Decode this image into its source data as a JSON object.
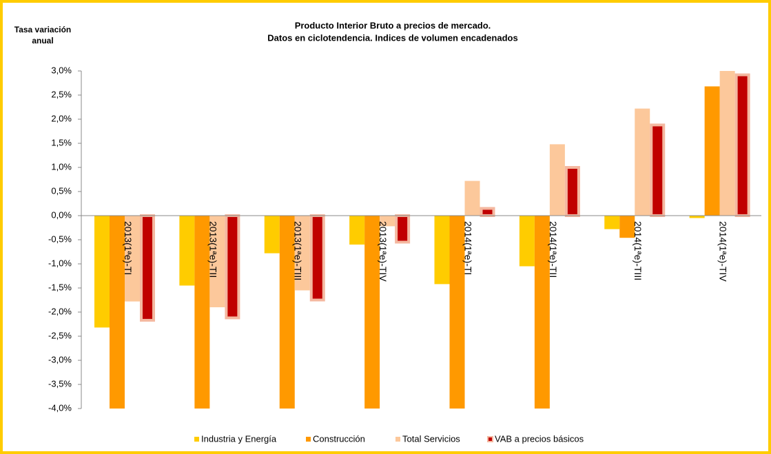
{
  "chart_data": {
    "type": "bar",
    "title": [
      "Producto Interior Bruto a precios de mercado.",
      "Datos en ciclotendencia. Indices de volumen encadenados"
    ],
    "y_label": [
      "Tasa variación",
      "anual"
    ],
    "categories": [
      "2013(1ªe)-TI",
      "2013(1ªe)-TII",
      "2013(1ªe)-TIII",
      "2013(1ªe)-TIV",
      "2014(1ªe)-TI",
      "2014(1ªe)-TII",
      "2014(1ªe)-TIII",
      "2014(1ªe)-TIV"
    ],
    "series": [
      {
        "name": "Industria y Energía",
        "color": "#ffcc00",
        "values": [
          -2.32,
          -1.45,
          -0.78,
          -0.6,
          -1.42,
          -1.05,
          -0.28,
          -0.05
        ]
      },
      {
        "name": "Construcción",
        "color": "#ff9900",
        "values": [
          -4.0,
          -4.0,
          -4.0,
          -4.0,
          -4.0,
          -4.0,
          -0.46,
          2.68
        ]
      },
      {
        "name": "Total Servicios",
        "color": "#fcc89b",
        "values": [
          -1.78,
          -1.9,
          -1.55,
          -0.22,
          0.72,
          1.48,
          2.22,
          3.0
        ]
      },
      {
        "name": "VAB a precios básicos",
        "color": "#c00000",
        "border": "#f4b8a0",
        "values": [
          -2.17,
          -2.12,
          -1.75,
          -0.55,
          0.15,
          1.0,
          1.88,
          2.92
        ]
      }
    ],
    "ylim": [
      -4.0,
      3.0
    ],
    "yticks": [
      {
        "value": 3.0,
        "label": "3,0%"
      },
      {
        "value": 2.5,
        "label": "2,5%"
      },
      {
        "value": 2.0,
        "label": "2,0%"
      },
      {
        "value": 1.5,
        "label": "1,5%"
      },
      {
        "value": 1.0,
        "label": "1,0%"
      },
      {
        "value": 0.5,
        "label": "0,5%"
      },
      {
        "value": 0.0,
        "label": "0,0%"
      },
      {
        "value": -0.5,
        "label": "-0,5%"
      },
      {
        "value": -1.0,
        "label": "-1,0%"
      },
      {
        "value": -1.5,
        "label": "-1,5%"
      },
      {
        "value": -2.0,
        "label": "-2,0%"
      },
      {
        "value": -2.5,
        "label": "-2,5%"
      },
      {
        "value": -3.0,
        "label": "-3,0%"
      },
      {
        "value": -3.5,
        "label": "-3,5%"
      },
      {
        "value": -4.0,
        "label": "-4,0%"
      }
    ],
    "grid": false,
    "legend": "bottom"
  }
}
